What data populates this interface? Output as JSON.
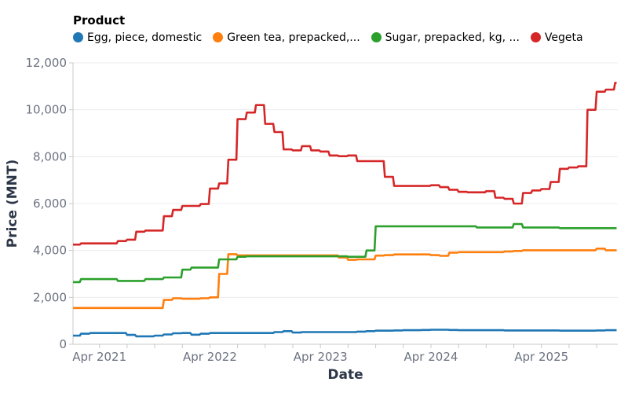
{
  "chart_data": {
    "type": "line",
    "legend_title": "Product",
    "legend_placement": "top",
    "xlabel": "Date",
    "ylabel": "Price (MNT)",
    "ylim": [
      0,
      12000
    ],
    "yticks": [
      0,
      2000,
      4000,
      6000,
      8000,
      10000,
      12000
    ],
    "ytick_labels": [
      "0",
      "2,000",
      "4,000",
      "6,000",
      "8,000",
      "10,000",
      "12,000"
    ],
    "xlim": [
      "2021-01",
      "2025-12"
    ],
    "xticks": [
      "2021-04",
      "2022-04",
      "2023-04",
      "2024-04",
      "2025-04"
    ],
    "xtick_labels": [
      "Apr 2021",
      "Apr 2022",
      "Apr 2023",
      "Apr 2024",
      "Apr 2025"
    ],
    "grid": true,
    "x": [
      "2021-01",
      "2021-02",
      "2021-03",
      "2021-04",
      "2021-05",
      "2021-06",
      "2021-07",
      "2021-08",
      "2021-09",
      "2021-10",
      "2021-11",
      "2021-12",
      "2022-01",
      "2022-02",
      "2022-03",
      "2022-04",
      "2022-05",
      "2022-06",
      "2022-07",
      "2022-08",
      "2022-09",
      "2022-10",
      "2022-11",
      "2022-12",
      "2023-01",
      "2023-02",
      "2023-03",
      "2023-04",
      "2023-05",
      "2023-06",
      "2023-07",
      "2023-08",
      "2023-09",
      "2023-10",
      "2023-11",
      "2023-12",
      "2024-01",
      "2024-02",
      "2024-03",
      "2024-04",
      "2024-05",
      "2024-06",
      "2024-07",
      "2024-08",
      "2024-09",
      "2024-10",
      "2024-11",
      "2024-12",
      "2025-01",
      "2025-02",
      "2025-03",
      "2025-04",
      "2025-05",
      "2025-06",
      "2025-07",
      "2025-08",
      "2025-09",
      "2025-10",
      "2025-11",
      "2025-12"
    ],
    "series": [
      {
        "name": "Egg, piece, domestic",
        "color": "#1f77b4",
        "values": [
          370,
          450,
          480,
          480,
          480,
          480,
          400,
          340,
          340,
          370,
          420,
          470,
          480,
          410,
          450,
          480,
          480,
          480,
          480,
          480,
          480,
          480,
          520,
          560,
          500,
          520,
          520,
          520,
          520,
          520,
          520,
          540,
          560,
          580,
          580,
          590,
          600,
          600,
          610,
          620,
          620,
          610,
          600,
          600,
          600,
          600,
          600,
          590,
          590,
          590,
          590,
          590,
          590,
          580,
          580,
          580,
          580,
          590,
          600,
          600
        ]
      },
      {
        "name": "Green tea, prepacked,...",
        "color": "#ff7f0e",
        "values": [
          1550,
          1550,
          1550,
          1550,
          1550,
          1550,
          1550,
          1550,
          1550,
          1550,
          1890,
          1960,
          1940,
          1940,
          1960,
          2000,
          3000,
          3840,
          3790,
          3790,
          3790,
          3790,
          3790,
          3790,
          3790,
          3790,
          3790,
          3790,
          3790,
          3700,
          3600,
          3620,
          3620,
          3780,
          3800,
          3830,
          3830,
          3830,
          3830,
          3800,
          3770,
          3910,
          3930,
          3930,
          3930,
          3930,
          3930,
          3960,
          3980,
          4010,
          4010,
          4010,
          4010,
          4010,
          4010,
          4010,
          4010,
          4080,
          4010,
          4010
        ]
      },
      {
        "name": "Sugar, prepacked, kg, ...",
        "color": "#2ca02c",
        "values": [
          2650,
          2780,
          2780,
          2780,
          2780,
          2700,
          2700,
          2700,
          2780,
          2780,
          2850,
          2850,
          3180,
          3270,
          3270,
          3270,
          3620,
          3620,
          3730,
          3750,
          3750,
          3750,
          3750,
          3750,
          3750,
          3750,
          3750,
          3750,
          3750,
          3750,
          3730,
          3730,
          4000,
          5030,
          5030,
          5030,
          5030,
          5030,
          5030,
          5030,
          5030,
          5030,
          5030,
          5030,
          4980,
          4980,
          4980,
          4980,
          5130,
          4980,
          4980,
          4980,
          4980,
          4950,
          4950,
          4950,
          4950,
          4950,
          4950,
          4950
        ]
      },
      {
        "name": "Vegeta",
        "color": "#d62728",
        "values": [
          4250,
          4300,
          4300,
          4300,
          4300,
          4400,
          4460,
          4800,
          4850,
          4850,
          5460,
          5730,
          5900,
          5900,
          5980,
          6640,
          6860,
          7870,
          9600,
          9880,
          10200,
          9400,
          9050,
          8310,
          8270,
          8450,
          8270,
          8220,
          8050,
          8020,
          8050,
          7810,
          7810,
          7810,
          7140,
          6750,
          6750,
          6750,
          6750,
          6780,
          6700,
          6590,
          6500,
          6480,
          6480,
          6530,
          6250,
          6200,
          6000,
          6450,
          6560,
          6620,
          6920,
          7480,
          7540,
          7590,
          10000,
          10770,
          10860,
          11150
        ]
      }
    ]
  }
}
